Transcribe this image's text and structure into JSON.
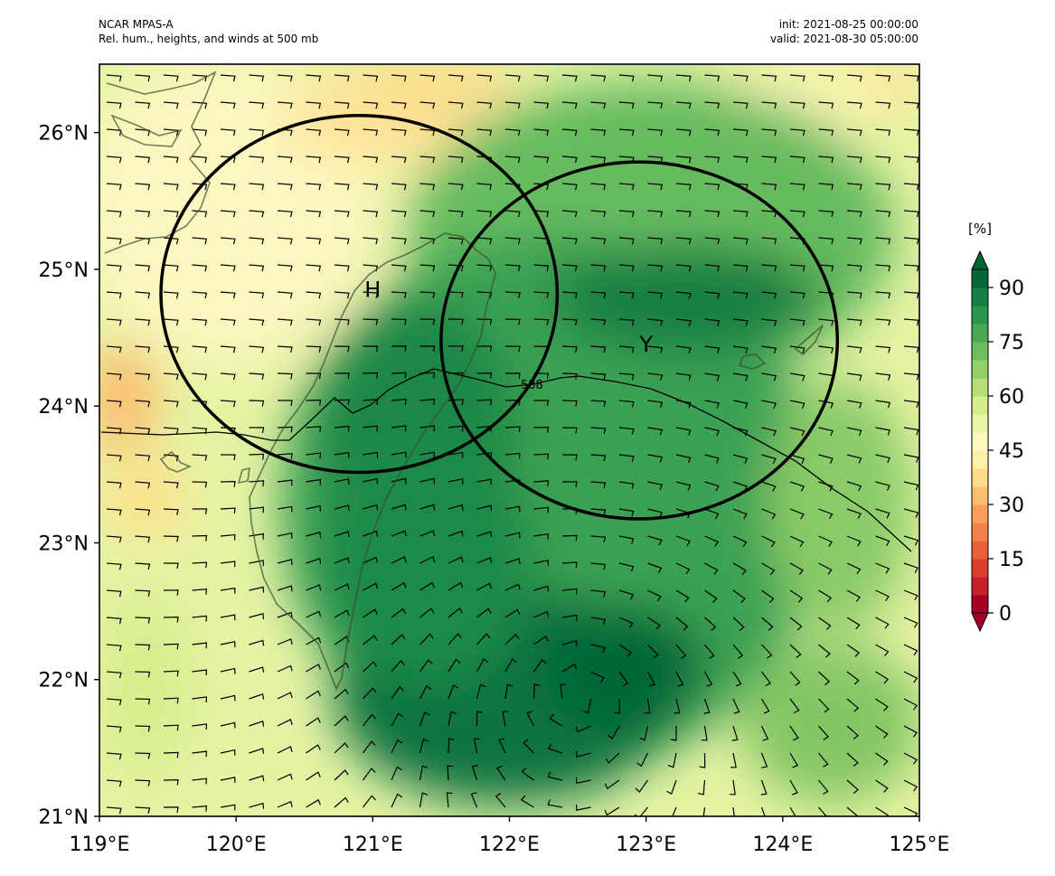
{
  "header": {
    "model": "NCAR MPAS-A",
    "field": "Rel. hum., heights, and winds at 500 mb",
    "init": "init: 2021-08-25 00:00:00",
    "valid": "valid: 2021-08-30 05:00:00"
  },
  "map": {
    "lon_range": [
      119,
      125
    ],
    "lat_range": [
      21,
      26.5
    ],
    "x_ticks": [
      "119°E",
      "120°E",
      "121°E",
      "122°E",
      "123°E",
      "124°E",
      "125°E"
    ],
    "y_ticks": [
      "21°N",
      "22°N",
      "23°N",
      "24°N",
      "25°N",
      "26°N"
    ],
    "contour_label": "588",
    "markers": [
      {
        "label": "H",
        "lon": 121.0,
        "lat": 24.85
      },
      {
        "label": "Y",
        "lon": 123.0,
        "lat": 24.45
      }
    ],
    "circles": [
      {
        "center_lon": 120.9,
        "center_lat": 24.82,
        "radius_deg": 1.45
      },
      {
        "center_lon": 122.95,
        "center_lat": 24.48,
        "radius_deg": 1.45
      }
    ]
  },
  "colorbar": {
    "unit": "[%]",
    "labels": [
      "0",
      "15",
      "30",
      "45",
      "60",
      "75",
      "90"
    ],
    "levels": [
      0,
      5,
      10,
      15,
      20,
      25,
      30,
      35,
      40,
      45,
      50,
      55,
      60,
      65,
      70,
      75,
      80,
      85,
      90,
      95
    ],
    "colors": [
      "#a50026",
      "#c8202a",
      "#dc3d2d",
      "#ec5f3b",
      "#f4804b",
      "#f99f5a",
      "#fdbf6f",
      "#fedb8a",
      "#fef0a7",
      "#fbf9c1",
      "#e8f5a6",
      "#d3ec8c",
      "#b5de77",
      "#93cf69",
      "#6ebd60",
      "#48a855",
      "#2a964d",
      "#128043",
      "#006837"
    ]
  },
  "colors": {
    "contour": "#000000",
    "circle": "#000000",
    "coast": "#3a4a30"
  }
}
